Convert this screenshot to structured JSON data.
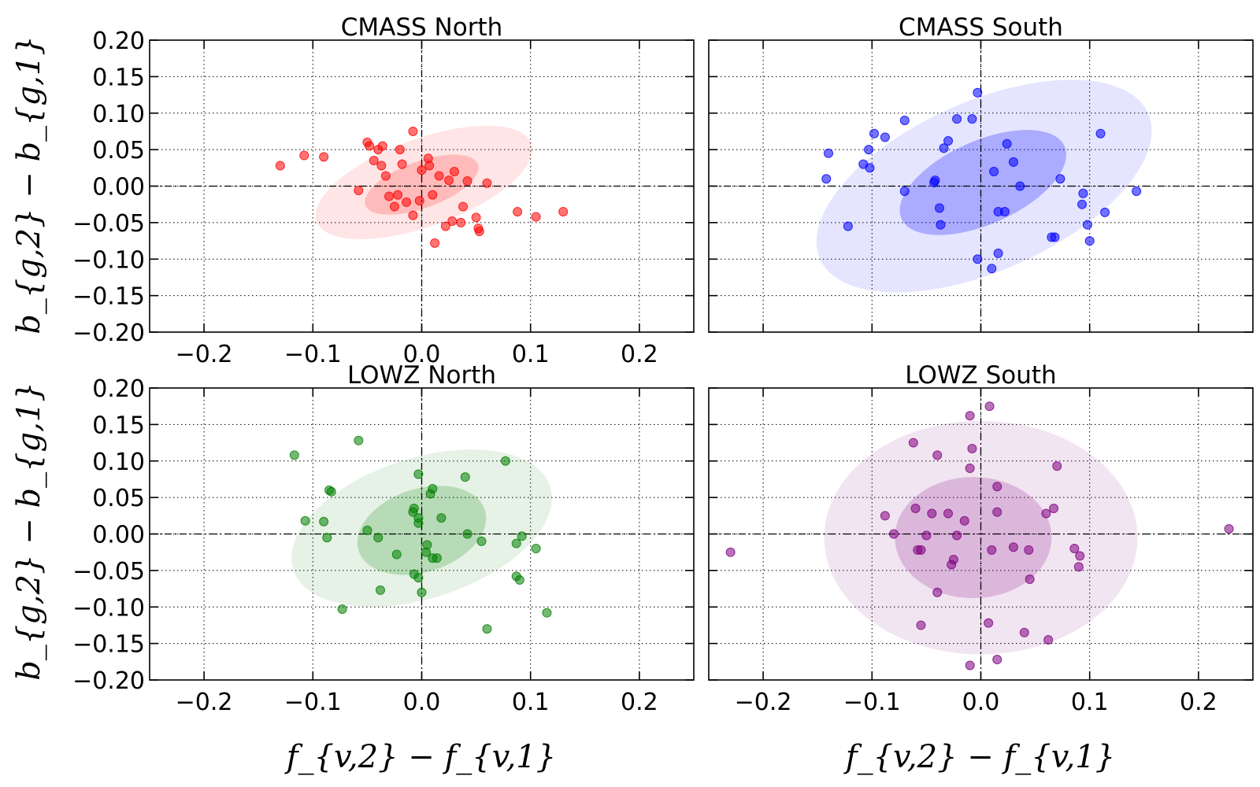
{
  "figure": {
    "ylabel": "b_{g,2} − b_{g,1}",
    "xlabel": "f_{v,2} − f_{v,1}"
  },
  "chart_data": [
    {
      "type": "scatter",
      "title": "CMASS North",
      "color": "#ff0000",
      "xlim": [
        -0.25,
        0.25
      ],
      "ylim": [
        -0.2,
        0.2
      ],
      "xticks": [
        -0.2,
        -0.1,
        0.0,
        0.1,
        0.2
      ],
      "yticks": [
        -0.2,
        -0.15,
        -0.1,
        -0.05,
        0.0,
        0.05,
        0.1,
        0.15,
        0.2
      ],
      "xtick_labels": [
        "−0.2",
        "−0.1",
        "0.0",
        "0.1",
        "0.2"
      ],
      "ytick_labels": [
        "−0.20",
        "−0.15",
        "−0.10",
        "−0.05",
        "0.00",
        "0.05",
        "0.10",
        "0.15",
        "0.20"
      ],
      "grid": true,
      "ellipses": [
        {
          "cx": 0.002,
          "cy": 0.005,
          "rx": 0.105,
          "ry": 0.06,
          "angle": -20,
          "opacity": 0.1
        },
        {
          "cx": 0.0,
          "cy": 0.002,
          "rx": 0.055,
          "ry": 0.032,
          "angle": -20,
          "opacity": 0.18
        }
      ],
      "points": [
        [
          -0.13,
          0.028
        ],
        [
          -0.108,
          0.042
        ],
        [
          -0.09,
          0.04
        ],
        [
          -0.058,
          -0.006
        ],
        [
          -0.05,
          0.06
        ],
        [
          -0.048,
          0.055
        ],
        [
          -0.044,
          0.035
        ],
        [
          -0.04,
          0.05
        ],
        [
          -0.037,
          0.028
        ],
        [
          -0.036,
          0.055
        ],
        [
          -0.033,
          0.014
        ],
        [
          -0.03,
          -0.014
        ],
        [
          -0.025,
          -0.028
        ],
        [
          -0.022,
          -0.012
        ],
        [
          -0.02,
          0.05
        ],
        [
          -0.018,
          0.03
        ],
        [
          -0.014,
          -0.022
        ],
        [
          -0.008,
          0.075
        ],
        [
          -0.008,
          -0.04
        ],
        [
          -0.002,
          -0.02
        ],
        [
          0.0,
          0.022
        ],
        [
          0.006,
          0.038
        ],
        [
          0.007,
          0.028
        ],
        [
          0.01,
          -0.012
        ],
        [
          0.012,
          -0.078
        ],
        [
          0.016,
          0.014
        ],
        [
          0.022,
          -0.055
        ],
        [
          0.025,
          0.008
        ],
        [
          0.028,
          -0.048
        ],
        [
          0.03,
          0.02
        ],
        [
          0.036,
          -0.05
        ],
        [
          0.038,
          -0.028
        ],
        [
          0.042,
          0.007
        ],
        [
          0.05,
          -0.043
        ],
        [
          0.052,
          -0.058
        ],
        [
          0.053,
          -0.062
        ],
        [
          0.06,
          0.004
        ],
        [
          0.088,
          -0.035
        ],
        [
          0.105,
          -0.042
        ],
        [
          0.13,
          -0.035
        ]
      ]
    },
    {
      "type": "scatter",
      "title": "CMASS South",
      "color": "#0000ff",
      "xlim": [
        -0.25,
        0.25
      ],
      "ylim": [
        -0.2,
        0.2
      ],
      "xticks": [
        -0.2,
        -0.1,
        0.0,
        0.1,
        0.2
      ],
      "yticks": [
        -0.2,
        -0.15,
        -0.1,
        -0.05,
        0.0,
        0.05,
        0.1,
        0.15,
        0.2
      ],
      "xtick_labels": [],
      "ytick_labels": [],
      "grid": true,
      "ellipses": [
        {
          "cx": 0.003,
          "cy": 0.0,
          "rx": 0.165,
          "ry": 0.116,
          "angle": -24,
          "opacity": 0.1
        },
        {
          "cx": 0.002,
          "cy": 0.005,
          "rx": 0.082,
          "ry": 0.057,
          "angle": -24,
          "opacity": 0.25
        }
      ],
      "points": [
        [
          -0.14,
          0.045
        ],
        [
          -0.142,
          0.01
        ],
        [
          -0.122,
          -0.055
        ],
        [
          -0.108,
          0.03
        ],
        [
          -0.103,
          0.05
        ],
        [
          -0.102,
          0.025
        ],
        [
          -0.098,
          0.072
        ],
        [
          -0.088,
          0.067
        ],
        [
          -0.07,
          0.09
        ],
        [
          -0.07,
          -0.007
        ],
        [
          -0.043,
          0.005
        ],
        [
          -0.042,
          0.008
        ],
        [
          -0.038,
          -0.03
        ],
        [
          -0.037,
          -0.053
        ],
        [
          -0.034,
          0.052
        ],
        [
          -0.03,
          0.062
        ],
        [
          -0.022,
          0.092
        ],
        [
          -0.008,
          0.092
        ],
        [
          -0.003,
          0.128
        ],
        [
          -0.003,
          -0.1
        ],
        [
          0.012,
          0.02
        ],
        [
          0.016,
          -0.035
        ],
        [
          0.016,
          -0.092
        ],
        [
          0.01,
          -0.113
        ],
        [
          0.022,
          -0.035
        ],
        [
          0.024,
          0.058
        ],
        [
          0.03,
          0.033
        ],
        [
          0.036,
          0.0
        ],
        [
          0.065,
          -0.07
        ],
        [
          0.068,
          -0.07
        ],
        [
          0.073,
          0.01
        ],
        [
          0.093,
          -0.025
        ],
        [
          0.094,
          -0.01
        ],
        [
          0.098,
          -0.053
        ],
        [
          0.1,
          -0.075
        ],
        [
          0.11,
          0.072
        ],
        [
          0.114,
          -0.036
        ],
        [
          0.143,
          -0.007
        ]
      ]
    },
    {
      "type": "scatter",
      "title": "LOWZ North",
      "color": "#008000",
      "xlim": [
        -0.25,
        0.25
      ],
      "ylim": [
        -0.2,
        0.2
      ],
      "xticks": [
        -0.2,
        -0.1,
        0.0,
        0.1,
        0.2
      ],
      "yticks": [
        -0.2,
        -0.15,
        -0.1,
        -0.05,
        0.0,
        0.05,
        0.1,
        0.15,
        0.2
      ],
      "xtick_labels": [
        "−0.2",
        "−0.1",
        "0.0",
        "0.1",
        "0.2"
      ],
      "ytick_labels": [
        "−0.20",
        "−0.15",
        "−0.10",
        "−0.05",
        "0.00",
        "0.05",
        "0.10",
        "0.15",
        "0.20"
      ],
      "grid": true,
      "ellipses": [
        {
          "cx": 0.0,
          "cy": 0.008,
          "rx": 0.124,
          "ry": 0.096,
          "angle": -18,
          "opacity": 0.1
        },
        {
          "cx": 0.0,
          "cy": 0.005,
          "rx": 0.061,
          "ry": 0.057,
          "angle": -18,
          "opacity": 0.2
        }
      ],
      "points": [
        [
          -0.117,
          0.108
        ],
        [
          -0.107,
          0.018
        ],
        [
          -0.085,
          0.06
        ],
        [
          -0.083,
          0.058
        ],
        [
          -0.09,
          0.017
        ],
        [
          -0.087,
          -0.005
        ],
        [
          -0.073,
          -0.103
        ],
        [
          -0.058,
          0.128
        ],
        [
          -0.05,
          0.005
        ],
        [
          -0.04,
          -0.005
        ],
        [
          -0.038,
          -0.077
        ],
        [
          -0.023,
          -0.028
        ],
        [
          -0.008,
          0.03
        ],
        [
          -0.007,
          0.035
        ],
        [
          -0.007,
          -0.055
        ],
        [
          -0.003,
          0.022
        ],
        [
          -0.003,
          0.015
        ],
        [
          -0.003,
          -0.06
        ],
        [
          -0.003,
          0.082
        ],
        [
          0.0,
          -0.08
        ],
        [
          0.004,
          -0.025
        ],
        [
          0.005,
          -0.015
        ],
        [
          0.008,
          0.055
        ],
        [
          0.01,
          0.062
        ],
        [
          0.01,
          -0.033
        ],
        [
          0.014,
          -0.033
        ],
        [
          0.018,
          0.022
        ],
        [
          0.04,
          0.078
        ],
        [
          0.042,
          0.0
        ],
        [
          0.055,
          -0.01
        ],
        [
          0.06,
          -0.13
        ],
        [
          0.077,
          0.1
        ],
        [
          0.087,
          -0.013
        ],
        [
          0.087,
          -0.058
        ],
        [
          0.09,
          -0.063
        ],
        [
          0.092,
          -0.003
        ],
        [
          0.105,
          -0.02
        ],
        [
          0.115,
          -0.108
        ]
      ]
    },
    {
      "type": "scatter",
      "title": "LOWZ South",
      "color": "#800080",
      "xlim": [
        -0.25,
        0.25
      ],
      "ylim": [
        -0.2,
        0.2
      ],
      "xticks": [
        -0.2,
        -0.1,
        0.0,
        0.1,
        0.2
      ],
      "yticks": [
        -0.2,
        -0.15,
        -0.1,
        -0.05,
        0.0,
        0.05,
        0.1,
        0.15,
        0.2
      ],
      "xtick_labels": [
        "−0.2",
        "−0.1",
        "0.0",
        "0.1",
        "0.2"
      ],
      "ytick_labels": [],
      "grid": true,
      "ellipses": [
        {
          "cx": 0.0,
          "cy": -0.005,
          "rx": 0.144,
          "ry": 0.16,
          "angle": 0,
          "opacity": 0.1
        },
        {
          "cx": -0.007,
          "cy": -0.005,
          "rx": 0.072,
          "ry": 0.083,
          "angle": 0,
          "opacity": 0.2
        }
      ],
      "points": [
        [
          -0.23,
          -0.025
        ],
        [
          -0.088,
          0.025
        ],
        [
          -0.08,
          0.0
        ],
        [
          -0.062,
          0.125
        ],
        [
          -0.06,
          0.035
        ],
        [
          -0.058,
          -0.022
        ],
        [
          -0.055,
          -0.022
        ],
        [
          -0.05,
          -0.002
        ],
        [
          -0.045,
          0.028
        ],
        [
          -0.04,
          0.108
        ],
        [
          -0.04,
          -0.08
        ],
        [
          -0.055,
          -0.125
        ],
        [
          -0.03,
          0.028
        ],
        [
          -0.027,
          -0.042
        ],
        [
          -0.025,
          -0.035
        ],
        [
          -0.022,
          -0.002
        ],
        [
          -0.015,
          0.018
        ],
        [
          -0.01,
          0.162
        ],
        [
          -0.008,
          0.117
        ],
        [
          -0.01,
          -0.18
        ],
        [
          0.007,
          -0.122
        ],
        [
          0.008,
          0.175
        ],
        [
          0.01,
          -0.022
        ],
        [
          0.015,
          0.065
        ],
        [
          0.015,
          -0.172
        ],
        [
          0.015,
          0.03
        ],
        [
          0.03,
          -0.018
        ],
        [
          0.04,
          -0.135
        ],
        [
          0.044,
          -0.022
        ],
        [
          0.045,
          -0.062
        ],
        [
          0.06,
          0.028
        ],
        [
          0.062,
          -0.145
        ],
        [
          0.067,
          0.035
        ],
        [
          0.07,
          0.093
        ],
        [
          0.086,
          -0.02
        ],
        [
          0.09,
          -0.045
        ],
        [
          0.091,
          -0.03
        ],
        [
          0.228,
          0.007
        ],
        [
          -0.01,
          0.09
        ]
      ]
    }
  ]
}
